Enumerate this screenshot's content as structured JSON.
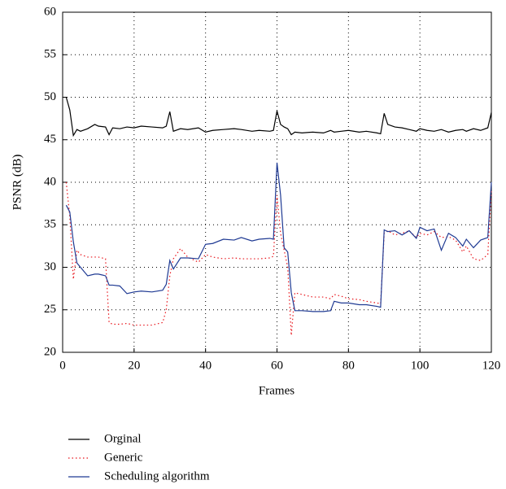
{
  "chart_data": {
    "type": "line",
    "xlabel": "Frames",
    "ylabel": "PSNR (dB)",
    "xlim": [
      0,
      120
    ],
    "xticks": [
      0,
      20,
      40,
      60,
      80,
      100,
      120
    ],
    "ylim": [
      20,
      60
    ],
    "yticks": [
      20,
      25,
      30,
      35,
      40,
      45,
      50,
      55,
      60
    ],
    "grid": true,
    "legend": "bottom",
    "x": [
      1,
      2,
      3,
      4,
      5,
      7,
      9,
      10,
      12,
      13,
      14,
      16,
      18,
      20,
      22,
      25,
      28,
      29,
      30,
      31,
      33,
      35,
      38,
      40,
      42,
      45,
      48,
      50,
      53,
      55,
      58,
      59,
      60,
      61,
      62,
      63,
      64,
      65,
      67,
      70,
      73,
      75,
      76,
      78,
      80,
      83,
      85,
      88,
      89,
      90,
      91,
      93,
      95,
      97,
      99,
      100,
      102,
      104,
      106,
      108,
      110,
      112,
      113,
      115,
      117,
      119,
      120
    ],
    "series": [
      {
        "name": "Orginal",
        "color": "#000000",
        "style": "solid",
        "values": [
          50,
          48.5,
          45.5,
          46.2,
          46,
          46.3,
          46.8,
          46.6,
          46.5,
          45.6,
          46.4,
          46.3,
          46.5,
          46.4,
          46.6,
          46.5,
          46.4,
          46.6,
          48.3,
          46,
          46.3,
          46.2,
          46.4,
          45.9,
          46.1,
          46.2,
          46.3,
          46.2,
          46.0,
          46.1,
          46,
          46.1,
          48.4,
          46.8,
          46.5,
          46.3,
          45.6,
          45.9,
          45.8,
          45.9,
          45.8,
          46.1,
          45.9,
          46,
          46.1,
          45.9,
          46,
          45.8,
          45.7,
          48.1,
          46.8,
          46.5,
          46.4,
          46.2,
          46,
          46.3,
          46.1,
          46,
          46.2,
          45.9,
          46.1,
          46.2,
          46,
          46.3,
          46.1,
          46.4,
          48.2
        ]
      },
      {
        "name": "Generic",
        "color": "#e8141b",
        "style": "dotted",
        "values": [
          40,
          36,
          28.6,
          32,
          31.5,
          31.2,
          31.2,
          31.2,
          31,
          23.5,
          23.3,
          23.3,
          23.4,
          23.2,
          23.2,
          23.2,
          23.5,
          25,
          29,
          31,
          32.2,
          31.2,
          30.6,
          31.5,
          31.2,
          31,
          31.1,
          31,
          31,
          31,
          31.1,
          31.3,
          38.5,
          34,
          32,
          30,
          22,
          27,
          26.8,
          26.5,
          26.5,
          26.3,
          26.8,
          26.6,
          26.3,
          26.2,
          26.0,
          25.8,
          25.7,
          34,
          34.3,
          33.8,
          34,
          34.3,
          33.5,
          34,
          33.8,
          34.2,
          33.5,
          33.6,
          33.2,
          31.8,
          32.5,
          31,
          30.8,
          31.5,
          39
        ]
      },
      {
        "name": "Scheduling algorithm",
        "color": "#1f3a93",
        "style": "solid",
        "values": [
          37.3,
          36.5,
          33,
          30.5,
          30,
          29,
          29.2,
          29.2,
          29,
          27.9,
          27.9,
          27.8,
          26.9,
          27.1,
          27.2,
          27.1,
          27.3,
          28,
          30.8,
          29.8,
          31.1,
          31.1,
          31,
          32.7,
          32.8,
          33.3,
          33.2,
          33.5,
          33.1,
          33.3,
          33.4,
          33.3,
          42.3,
          38.5,
          32.3,
          31.8,
          27,
          24.9,
          24.9,
          24.8,
          24.8,
          24.9,
          26,
          25.8,
          25.8,
          25.6,
          25.6,
          25.4,
          25.3,
          34.4,
          34.2,
          34.3,
          33.8,
          34.3,
          33.4,
          34.7,
          34.3,
          34.5,
          32,
          34,
          33.5,
          32.5,
          33.3,
          32.3,
          33.2,
          33.5,
          40
        ]
      }
    ]
  }
}
